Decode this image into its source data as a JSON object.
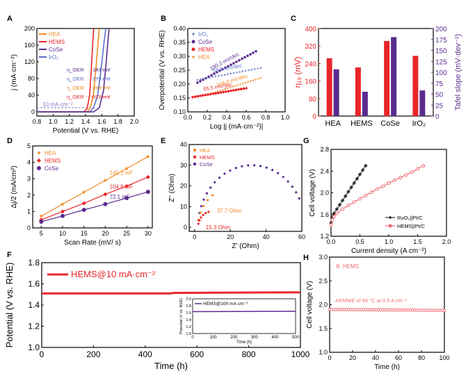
{
  "figure": {
    "colors": {
      "hea": "#f08a24",
      "hems": "#e8262a",
      "cose": "#5b2c8f",
      "iro2": "#5a6fc9",
      "dark": "#333333",
      "pink": "#f06b73"
    }
  },
  "chart_data": [
    {
      "id": "A",
      "type": "line",
      "panel_label": "A",
      "xlabel": "Potential (V vs. RHE)",
      "ylabel": "j (mA·cm⁻²)",
      "xlim": [
        0.8,
        2.0
      ],
      "ylim": [
        -10,
        200
      ],
      "xticks": [
        "0.8",
        "1.0",
        "1.2",
        "1.4",
        "1.6",
        "1.8",
        "2.0"
      ],
      "yticks": [
        "0",
        "40",
        "80",
        "120",
        "160",
        "200"
      ],
      "legend": [
        "HEA",
        "HEMS",
        "CoSe",
        "IrO₂"
      ],
      "annotation_ref": "10 mA·cm⁻²",
      "annotations": [
        {
          "label": "η_OER",
          "value": "343 mV",
          "series": "CoSe"
        },
        {
          "label": "η_OER",
          "value": "275 mV",
          "series": "IrO₂"
        },
        {
          "label": "η_OER",
          "value": "264 mV",
          "series": "HEA"
        },
        {
          "label": "η_OER",
          "value": "222 mV",
          "series": "HEMS"
        }
      ],
      "series": [
        {
          "name": "HEMS",
          "onset": 1.38,
          "x": [
            0.8,
            1.38,
            1.42,
            1.45,
            1.47,
            1.49,
            1.5
          ],
          "y": [
            0,
            0,
            8,
            40,
            100,
            170,
            200
          ]
        },
        {
          "name": "HEA",
          "onset": 1.42,
          "x": [
            0.8,
            1.42,
            1.46,
            1.5,
            1.53,
            1.56,
            1.57
          ],
          "y": [
            0,
            0,
            10,
            45,
            110,
            180,
            200
          ]
        },
        {
          "name": "IrO₂",
          "onset": 1.45,
          "x": [
            0.8,
            1.45,
            1.5,
            1.55,
            1.59,
            1.63,
            1.65
          ],
          "y": [
            0,
            0,
            10,
            40,
            100,
            170,
            200
          ]
        },
        {
          "name": "CoSe",
          "onset": 1.5,
          "x": [
            0.8,
            1.5,
            1.57,
            1.62,
            1.65,
            1.68,
            1.69
          ],
          "y": [
            0,
            0,
            10,
            50,
            110,
            180,
            200
          ]
        }
      ]
    },
    {
      "id": "B",
      "type": "scatter",
      "panel_label": "B",
      "xlabel": "Log |j (mA·cm⁻²)|",
      "ylabel": "Overpotential (V vs. RHE)",
      "xlim": [
        0.0,
        1.0
      ],
      "ylim": [
        0.1,
        0.4
      ],
      "xticks": [
        "0.0",
        "0.2",
        "0.4",
        "0.6",
        "0.8",
        "1.0"
      ],
      "yticks": [
        "0.10",
        "0.15",
        "0.20",
        "0.25",
        "0.30",
        "0.35",
        "0.40"
      ],
      "legend": [
        "IrO₂",
        "CoSe",
        "HEMS",
        "HEA"
      ],
      "series": [
        {
          "name": "CoSe",
          "x0": 0.1,
          "x1": 0.7,
          "y0": 0.205,
          "y1": 0.318,
          "label": "180.3 mV/dec"
        },
        {
          "name": "IrO₂",
          "x0": 0.1,
          "x1": 0.75,
          "y0": 0.215,
          "y1": 0.258,
          "label": "58.5 mV/dec"
        },
        {
          "name": "HEA",
          "x0": 0.2,
          "x1": 0.75,
          "y0": 0.162,
          "y1": 0.222,
          "label": "106.8 mV/dec"
        },
        {
          "name": "HEMS",
          "x0": 0.05,
          "x1": 0.6,
          "y0": 0.153,
          "y1": 0.185,
          "label": "55.5 mV/dec"
        }
      ]
    },
    {
      "id": "C",
      "type": "bar",
      "panel_label": "C",
      "categories": [
        "HEA",
        "HEMS",
        "CoSe",
        "IrO₂"
      ],
      "ylabel_left": "η₁₀ (mV)",
      "ylabel_right": "Tafel slope (mV·dev⁻¹)",
      "ylim_left": [
        0,
        400
      ],
      "ylim_right": [
        0,
        200
      ],
      "yticks_left": [
        "0",
        "80",
        "160",
        "240",
        "320",
        "400"
      ],
      "yticks_right": [
        "0",
        "25",
        "50",
        "75",
        "100",
        "125",
        "150",
        "175",
        "200"
      ],
      "series": [
        {
          "name": "η10",
          "axis": "left",
          "values": [
            264,
            222,
            343,
            275
          ]
        },
        {
          "name": "Tafel slope",
          "axis": "right",
          "values": [
            106.8,
            55.5,
            180.3,
            58.5
          ]
        }
      ]
    },
    {
      "id": "D",
      "type": "line",
      "panel_label": "D",
      "xlabel": "Scan Rate (mV/ s)",
      "ylabel": "Δj/2 (mA/cm²)",
      "xlim": [
        3,
        31
      ],
      "ylim": [
        0,
        5
      ],
      "xticks": [
        "5",
        "10",
        "15",
        "20",
        "25",
        "30"
      ],
      "yticks": [
        "0",
        "1",
        "2",
        "3",
        "4",
        "5"
      ],
      "legend": [
        "HEA",
        "HEMS",
        "CoSe"
      ],
      "x": [
        5,
        10,
        15,
        20,
        25,
        30
      ],
      "series": [
        {
          "name": "HEA",
          "values": [
            0.72,
            1.45,
            2.18,
            2.9,
            3.62,
            4.35
          ],
          "label": "145.1 mF"
        },
        {
          "name": "HEMS",
          "values": [
            0.5,
            1.0,
            1.5,
            2.05,
            2.55,
            3.1
          ],
          "label": "104.9 mF"
        },
        {
          "name": "CoSe",
          "values": [
            0.38,
            0.73,
            1.1,
            1.45,
            1.82,
            2.2
          ],
          "label": "72.1 mF"
        }
      ]
    },
    {
      "id": "E",
      "type": "scatter",
      "panel_label": "E",
      "xlabel": "Z' (Ohm)",
      "ylabel": "Z'' (Ohm)",
      "xlim": [
        -3,
        60
      ],
      "ylim": [
        -2,
        40
      ],
      "xticks": [
        "0",
        "20",
        "40",
        "60"
      ],
      "yticks": [
        "0",
        "10",
        "20",
        "30",
        "40"
      ],
      "legend": [
        "HEA",
        "HEMS",
        "CoSe"
      ],
      "series": [
        {
          "name": "CoSe",
          "R0": 2,
          "Rct": 60,
          "points": 24,
          "label": ""
        },
        {
          "name": "HEA",
          "R0": 2,
          "Rct": 37.7,
          "points": 14,
          "label": "37.7 Ohm",
          "maxx": 12
        },
        {
          "name": "HEMS",
          "R0": 2,
          "Rct": 15.3,
          "points": 12,
          "label": "15.3 Ohm",
          "maxx": 8
        }
      ]
    },
    {
      "id": "G",
      "type": "line",
      "panel_label": "G",
      "xlabel": "Current density (A cm⁻²)",
      "ylabel": "Cell voltage (V)",
      "xlim": [
        0.0,
        2.0
      ],
      "ylim": [
        1.2,
        2.8
      ],
      "xticks": [
        "0.0",
        "0.5",
        "1.0",
        "1.5",
        "2.0"
      ],
      "yticks": [
        "1.2",
        "1.6",
        "2.0",
        "2.4",
        "2.8"
      ],
      "legend": [
        "RuO₂||Pt/C",
        "HEMS||Pt/C"
      ],
      "series": [
        {
          "name": "RuO₂||Pt/C",
          "x": [
            0,
            0.02,
            0.05,
            0.1,
            0.15,
            0.2,
            0.25,
            0.3,
            0.35,
            0.4,
            0.45,
            0.5,
            0.55,
            0.6
          ],
          "y": [
            1.45,
            1.55,
            1.62,
            1.7,
            1.78,
            1.86,
            1.94,
            2.02,
            2.1,
            2.18,
            2.26,
            2.34,
            2.42,
            2.5
          ]
        },
        {
          "name": "HEMS||Pt/C",
          "x": [
            0,
            0.02,
            0.05,
            0.1,
            0.2,
            0.3,
            0.4,
            0.5,
            0.6,
            0.7,
            0.8,
            0.9,
            1.0,
            1.1,
            1.2,
            1.3,
            1.4,
            1.5,
            1.6
          ],
          "y": [
            1.4,
            1.5,
            1.56,
            1.62,
            1.7,
            1.77,
            1.83,
            1.89,
            1.95,
            2.01,
            2.07,
            2.12,
            2.18,
            2.23,
            2.28,
            2.33,
            2.38,
            2.44,
            2.5
          ]
        }
      ]
    },
    {
      "id": "F",
      "type": "line",
      "panel_label": "F",
      "xlabel": "Time (h)",
      "ylabel": "Potential (V vs. RHE)",
      "xlim": [
        0,
        1000
      ],
      "ylim": [
        1.0,
        1.8
      ],
      "xticks": [
        "0",
        "200",
        "400",
        "600",
        "800",
        "1000"
      ],
      "yticks": [
        "1.0",
        "1.2",
        "1.4",
        "1.6",
        "1.8"
      ],
      "legend": [
        "HEMS@10 mA·cm⁻²"
      ],
      "series": [
        {
          "name": "HEMS@10 mA·cm⁻²",
          "x": [
            0,
            500,
            510,
            1000
          ],
          "y": [
            1.51,
            1.51,
            1.515,
            1.52
          ]
        }
      ],
      "inset": {
        "legend": "HEMS@100 mA·cm⁻²",
        "xlabel": "Time (h)",
        "ylabel": "Potential (V vs. RHE)",
        "xlim": [
          0,
          500
        ],
        "ylim": [
          1.0,
          2.0
        ],
        "xticks": [
          "0",
          "100",
          "200",
          "300",
          "400",
          "500"
        ],
        "yticks": [
          "1.0",
          "1.2",
          "1.4",
          "1.6",
          "1.8",
          "2.0"
        ],
        "series": [
          {
            "name": "HEMS@100 mA·cm⁻²",
            "x": [
              0,
              500
            ],
            "y": [
              1.63,
              1.64
            ]
          }
        ]
      }
    },
    {
      "id": "H",
      "type": "scatter",
      "panel_label": "H",
      "xlabel": "Time (h)",
      "ylabel": "Cell voltage (V)",
      "xlim": [
        0,
        100
      ],
      "ylim": [
        1.0,
        3.0
      ],
      "xticks": [
        "0",
        "20",
        "40",
        "60",
        "80",
        "100"
      ],
      "yticks": [
        "1.0",
        "1.5",
        "2.0",
        "2.5",
        "3.0"
      ],
      "legend": [
        "HEMS"
      ],
      "annotation": "AEMWE of 60 °C at 0.5 A cm⁻²",
      "series": [
        {
          "name": "HEMS",
          "x0": 0,
          "x1": 100,
          "y0": 1.9,
          "y1": 1.88,
          "points": 55
        }
      ]
    }
  ]
}
